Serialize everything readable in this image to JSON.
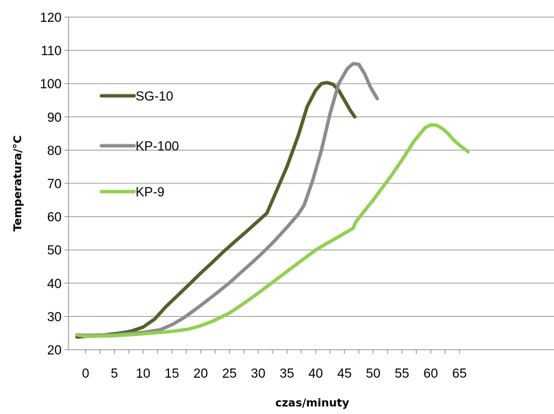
{
  "chart_data": {
    "type": "line",
    "title": "",
    "xlabel": "czas/minuty",
    "ylabel": "Temperatura/°C",
    "xlim": [
      -2,
      67
    ],
    "ylim": [
      20,
      120
    ],
    "x_ticks": [
      0,
      5,
      10,
      15,
      20,
      25,
      30,
      35,
      40,
      45,
      50,
      55,
      60,
      65
    ],
    "x_tick_labels": [
      "0",
      "5",
      "10",
      "15",
      "20",
      "25",
      "30",
      "35",
      "40",
      "45",
      "50",
      "55",
      "60",
      "65"
    ],
    "y_ticks": [
      20,
      30,
      40,
      50,
      60,
      70,
      80,
      90,
      100,
      110,
      120
    ],
    "y_tick_labels": [
      "20",
      "30",
      "40",
      "50",
      "60",
      "70",
      "80",
      "90",
      "100",
      "110",
      "120"
    ],
    "grid": "horizontal",
    "legend_position": "inside-left",
    "series": [
      {
        "name": "SG-10",
        "color": "#4f6228",
        "x": [
          -1.5,
          0,
          3,
          6,
          8,
          10,
          12,
          14,
          16,
          18,
          20,
          22,
          24,
          26,
          28,
          30,
          31.5,
          33,
          35,
          37,
          38.5,
          40,
          41,
          42,
          43,
          44,
          45,
          46,
          46.8
        ],
        "y": [
          23.8,
          24,
          24.4,
          25,
          25.6,
          26.8,
          29.2,
          33,
          36.3,
          39.6,
          43,
          46.2,
          49.5,
          52.6,
          55.6,
          58.7,
          61,
          67,
          75,
          84.5,
          93,
          98,
          100,
          100.3,
          99.8,
          98,
          95,
          92,
          90
        ]
      },
      {
        "name": "KP-100",
        "color": "#8c8c8c",
        "x": [
          -1.5,
          0,
          5,
          10,
          13,
          15,
          17,
          19,
          21,
          23,
          25,
          27,
          29,
          31,
          33,
          35,
          37,
          38,
          39.5,
          41,
          42.5,
          44,
          45.5,
          46.5,
          47.5,
          48.5,
          49.5,
          50.7
        ],
        "y": [
          24.5,
          24.3,
          24.5,
          25.2,
          26,
          27.5,
          29.5,
          32,
          34.6,
          37.3,
          40.1,
          43.2,
          46.3,
          49.5,
          53,
          56.8,
          60.8,
          63.5,
          71,
          80,
          91,
          100,
          104.5,
          106,
          105.8,
          103,
          99,
          95.5
        ]
      },
      {
        "name": "KP-9",
        "color": "#92d050",
        "x": [
          -1.5,
          0,
          5,
          10,
          15,
          18,
          20,
          22,
          25,
          28,
          30,
          35,
          40,
          45,
          46.5,
          47,
          50,
          53,
          55,
          57,
          59,
          60,
          61,
          62,
          63,
          64,
          65,
          66.5
        ],
        "y": [
          24.5,
          24,
          24.2,
          24.8,
          25.5,
          26.2,
          27.2,
          28.5,
          31,
          34.5,
          37,
          43.5,
          50,
          55,
          56.5,
          58.5,
          65,
          72,
          77,
          82.5,
          86.7,
          87.6,
          87.5,
          86.5,
          85,
          83,
          81.5,
          79.5
        ]
      }
    ]
  }
}
